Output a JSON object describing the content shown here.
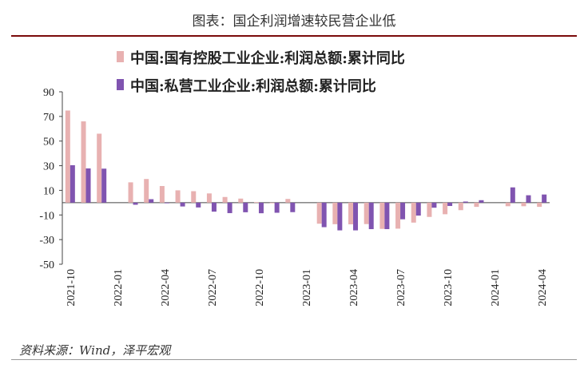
{
  "header": {
    "title": "图表：国企利润增速较民营企业低"
  },
  "source": "资料来源：Wind，泽平宏观",
  "colors": {
    "series0": "#e8b1b1",
    "series1": "#8054b0",
    "axis": "#444444"
  },
  "chart_data": {
    "type": "bar",
    "title": "",
    "xlabel": "",
    "ylabel": "",
    "ylim": [
      -50,
      90
    ],
    "yticks": [
      90,
      70,
      50,
      30,
      10,
      -10,
      -30,
      -50
    ],
    "grid": false,
    "legend_position": "top",
    "x_tick_labels": [
      "2021-10",
      "2022-01",
      "2022-04",
      "2022-07",
      "2022-10",
      "2023-01",
      "2023-04",
      "2023-07",
      "2023-10",
      "2024-01",
      "2024-04"
    ],
    "categories": [
      "2021-10",
      "2021-11",
      "2021-12",
      "2022-01",
      "2022-02",
      "2022-03",
      "2022-04",
      "2022-05",
      "2022-06",
      "2022-07",
      "2022-08",
      "2022-09",
      "2022-10",
      "2022-11",
      "2022-12",
      "2023-01",
      "2023-02",
      "2023-03",
      "2023-04",
      "2023-05",
      "2023-06",
      "2023-07",
      "2023-08",
      "2023-09",
      "2023-10",
      "2023-11",
      "2023-12",
      "2024-01",
      "2024-02",
      "2024-03",
      "2024-04"
    ],
    "series": [
      {
        "name": "中国:国有控股工业企业:利润总额:累计同比",
        "values": [
          74.8,
          66,
          56,
          null,
          16.5,
          19.2,
          13.5,
          10,
          9.3,
          7.5,
          4.6,
          3.3,
          0.4,
          -0.2,
          3,
          null,
          -17.1,
          -17.5,
          -17.6,
          -17.4,
          -21.3,
          -21.1,
          -16.2,
          -11.6,
          -9.4,
          -6.1,
          -3.4,
          null,
          -2.9,
          -2.9,
          -3.4
        ]
      },
      {
        "name": "中国:私营工业企业:利润总额:累计同比",
        "values": [
          30.4,
          27.8,
          27.6,
          null,
          -1.7,
          2.8,
          -0.4,
          -3.1,
          -3.9,
          -7.3,
          -8.5,
          -7.8,
          -8.6,
          -8.2,
          -7.7,
          null,
          -19.9,
          -22.5,
          -22.5,
          -21.5,
          -21.5,
          -13.5,
          -10.5,
          -4.1,
          -2.7,
          0.9,
          2,
          null,
          12.4,
          6,
          6.6
        ]
      }
    ]
  }
}
